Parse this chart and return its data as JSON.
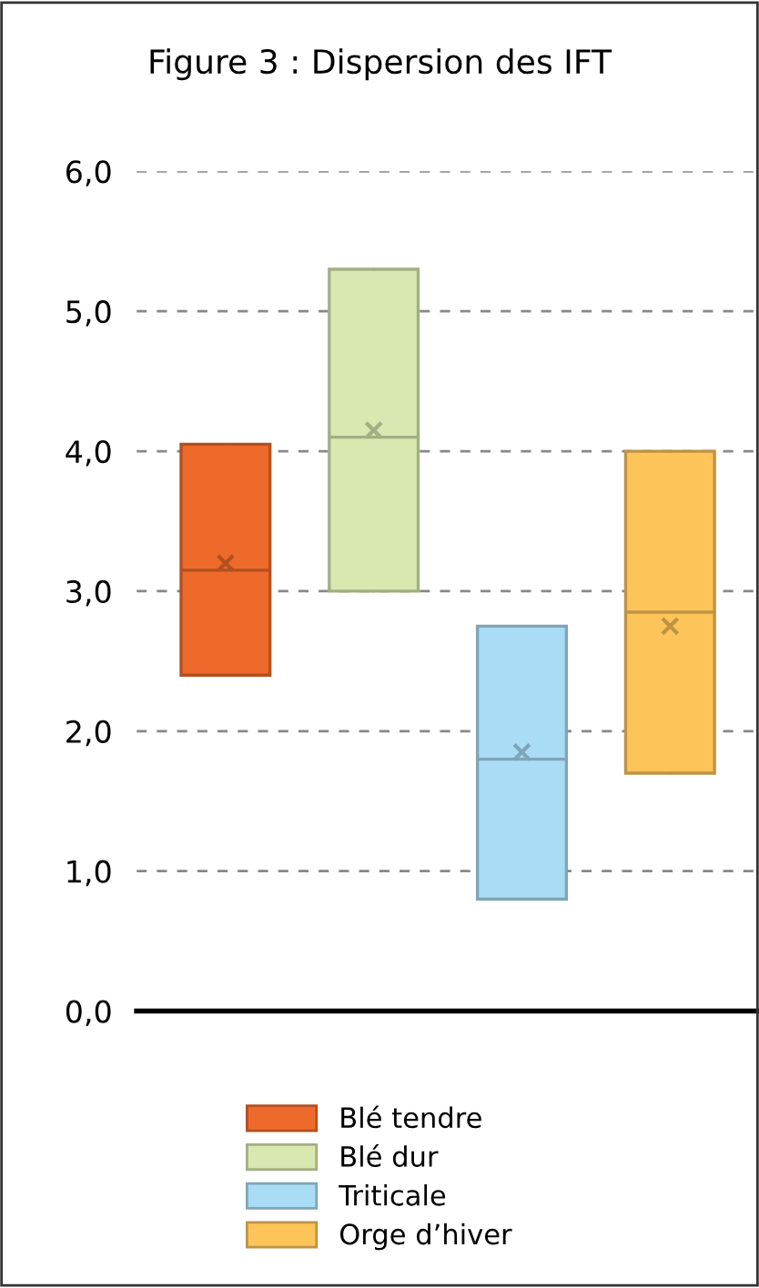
{
  "chart_data": {
    "type": "box",
    "title": "Figure 3 : Dispersion des IFT",
    "categories": [
      null,
      null,
      null,
      null
    ],
    "series": [
      {
        "name": "Blé tendre",
        "color": "#ee6a2a",
        "boxes": [
          {
            "low": 2.4,
            "q1": 2.4,
            "median": 3.15,
            "q3": 4.05,
            "high": 4.05,
            "mean": 3.2
          },
          null,
          null,
          null
        ]
      },
      {
        "name": "Blé dur",
        "color": "#d9e8b0",
        "boxes": [
          null,
          {
            "low": 3.0,
            "q1": 3.0,
            "median": 4.1,
            "q3": 5.3,
            "high": 5.3,
            "mean": 4.15
          },
          null,
          null
        ]
      },
      {
        "name": "Triticale",
        "color": "#a9dcf5",
        "boxes": [
          null,
          null,
          {
            "low": 0.8,
            "q1": 0.8,
            "median": 1.8,
            "q3": 2.75,
            "high": 2.75,
            "mean": 1.85
          },
          null
        ]
      },
      {
        "name": "Orge d’hiver",
        "color": "#fdc45a",
        "boxes": [
          null,
          null,
          null,
          {
            "low": 1.7,
            "q1": 1.7,
            "median": 2.85,
            "q3": 4.0,
            "high": 4.0,
            "mean": 2.75
          }
        ]
      }
    ],
    "ylim": [
      0,
      6
    ],
    "yticks": [
      {
        "value": 0,
        "label": "0,0"
      },
      {
        "value": 1,
        "label": "1,0"
      },
      {
        "value": 2,
        "label": "2,0"
      },
      {
        "value": 3,
        "label": "3,0"
      },
      {
        "value": 4,
        "label": "4,0"
      },
      {
        "value": 5,
        "label": "5,0"
      },
      {
        "value": 6,
        "label": "6,0"
      }
    ],
    "grid": "y",
    "legend": "bottom",
    "marker": "cross",
    "tick_labels": "y"
  }
}
